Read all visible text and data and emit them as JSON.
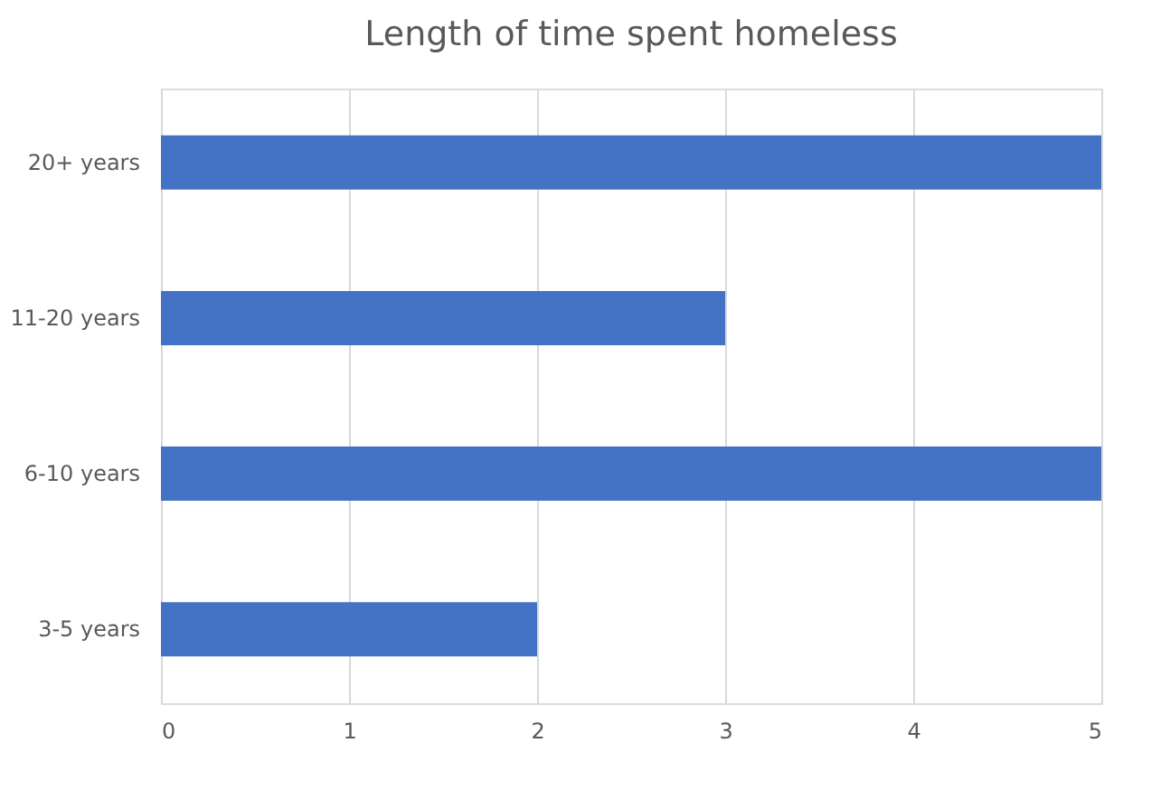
{
  "chart_data": {
    "type": "bar",
    "orientation": "horizontal",
    "title": "Length of time spent homeless",
    "categories": [
      "20+ years",
      "11-20 years",
      "6-10 years",
      "3-5 years"
    ],
    "values": [
      5,
      3,
      5,
      2
    ],
    "color": "#4472c4",
    "xlim": [
      0,
      5
    ],
    "xticks": [
      0,
      1,
      2,
      3,
      4,
      5
    ],
    "grid": "x"
  }
}
